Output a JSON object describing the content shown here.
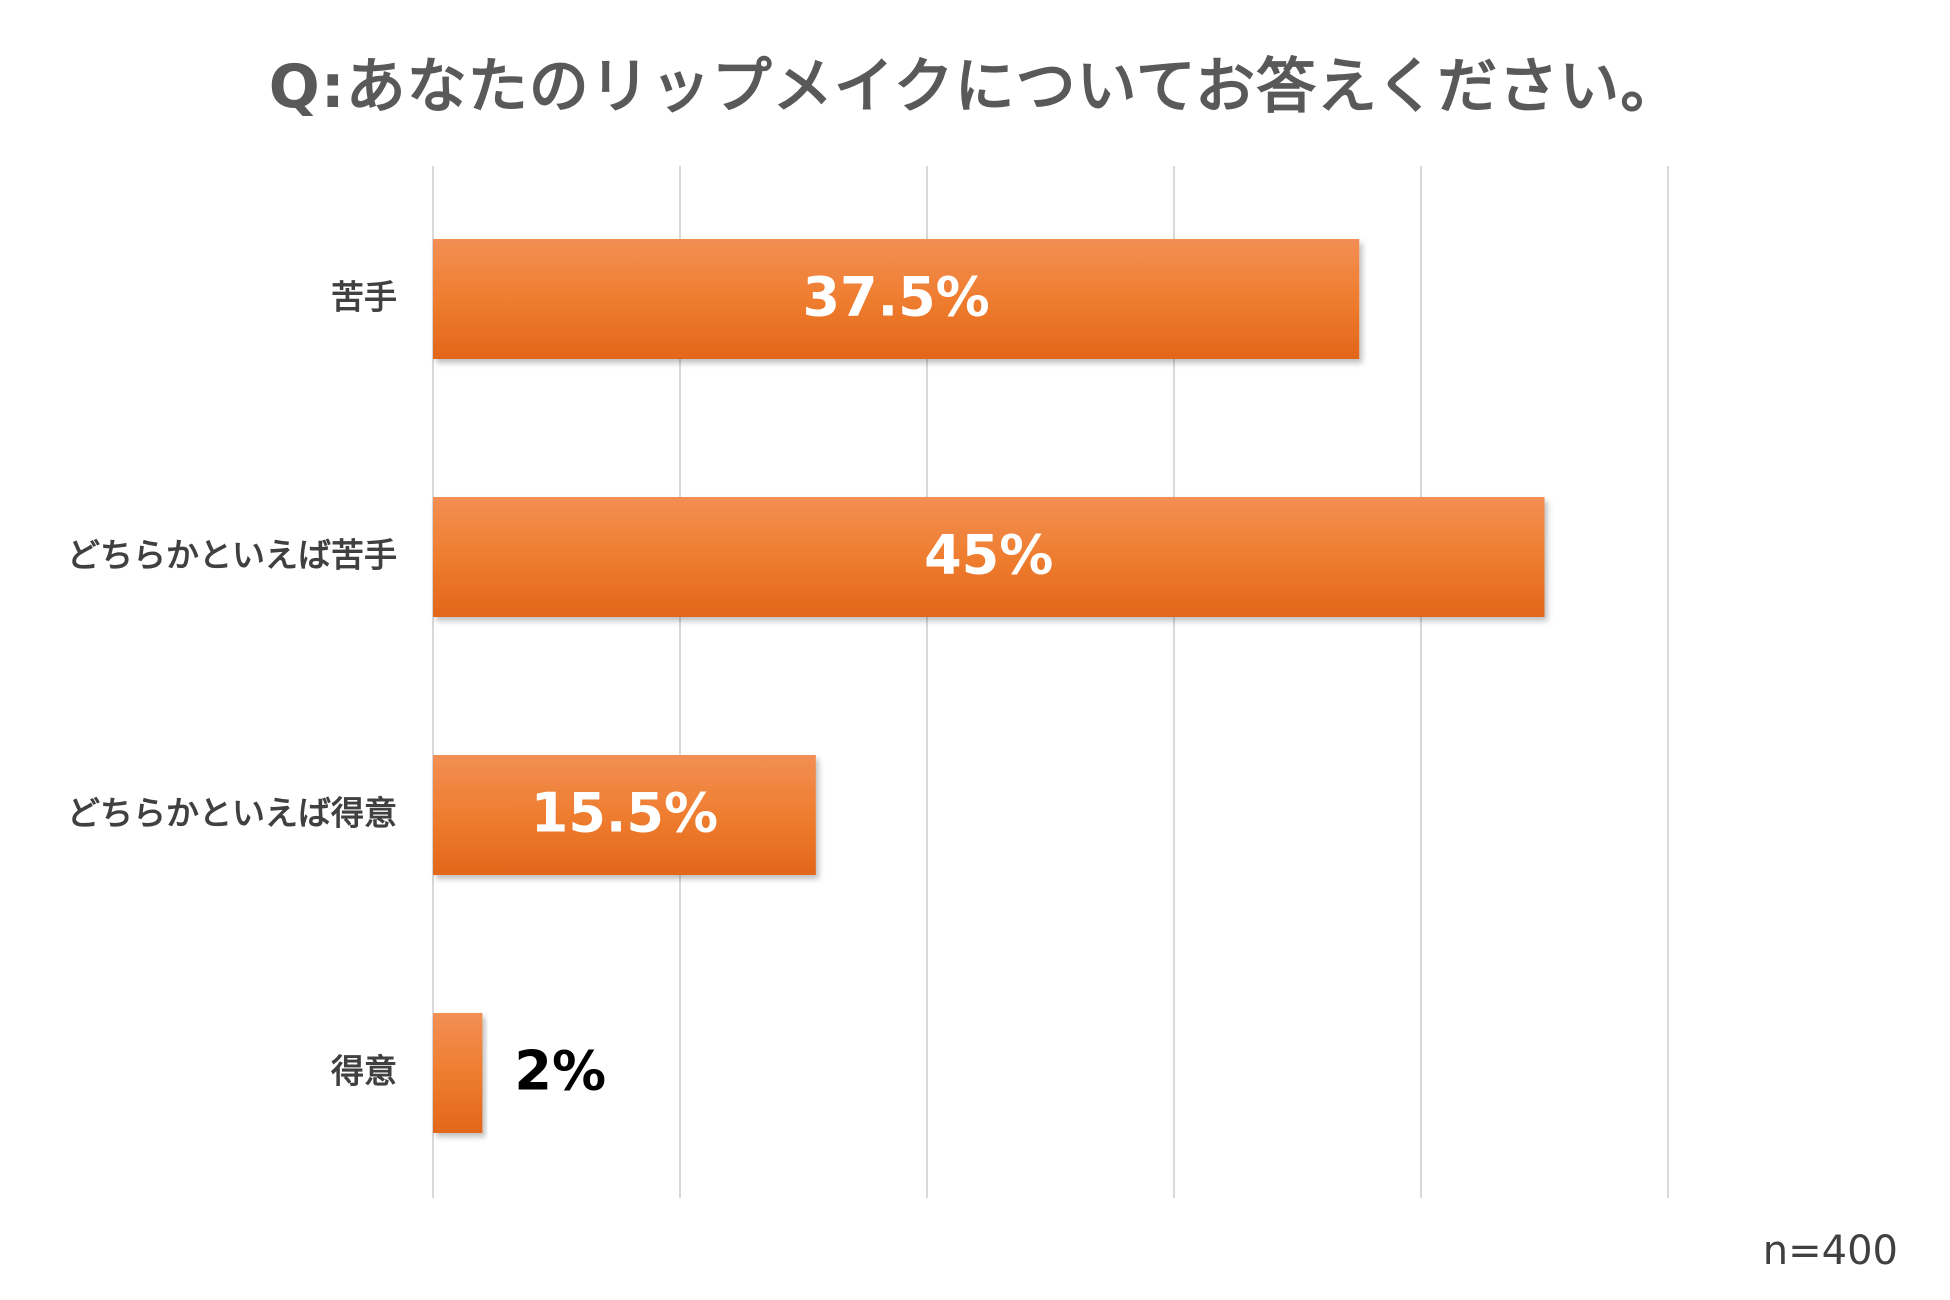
{
  "title": "Q:あなたのリップメイクについてお答えください。",
  "sample_note": "n=400",
  "colors": {
    "bar_top": "#f28f55",
    "bar_mid": "#ef7d2f",
    "bar_bottom": "#e2661a",
    "grid": "#d9d9d9",
    "title": "#595959"
  },
  "chart_data": {
    "type": "bar",
    "orientation": "horizontal",
    "categories": [
      "苦手",
      "どちらかといえば苦手",
      "どちらかといえば得意",
      "得意"
    ],
    "values": [
      37.5,
      45,
      15.5,
      2
    ],
    "value_labels": [
      "37.5%",
      "45%",
      "15.5%",
      "2%"
    ],
    "xlim": [
      0,
      50
    ],
    "grid": true,
    "legend": "none"
  }
}
